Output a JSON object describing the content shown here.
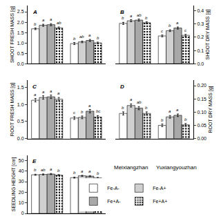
{
  "chart_data": [
    {
      "type": "bar",
      "title": "A",
      "ylabel": "SHOOT FRESH MASS [g]",
      "categories": [
        "Meixiangzhan",
        "Yuxiangyouzhan"
      ],
      "series": [
        {
          "name": "Fe-A-",
          "color": "white",
          "values": [
            1.68,
            0.97
          ],
          "errors": [
            0.04,
            0.05
          ],
          "letters": [
            "b",
            "b"
          ]
        },
        {
          "name": "Fe-A+",
          "color": "#d0d0d0",
          "values": [
            1.85,
            1.05
          ],
          "errors": [
            0.05,
            0.04
          ],
          "letters": [
            "a",
            "ab"
          ]
        },
        {
          "name": "Fe+A-",
          "color": "#a8a8a8",
          "values": [
            1.88,
            1.12
          ],
          "errors": [
            0.05,
            0.05
          ],
          "letters": [
            "a",
            "a"
          ]
        },
        {
          "name": "Fe+A+",
          "color": "#d0d0d0",
          "marker": "dots",
          "values": [
            1.73,
            1.0
          ],
          "errors": [
            0.04,
            0.04
          ],
          "letters": [
            "ab",
            "b"
          ]
        }
      ],
      "ylim": [
        0,
        2.8
      ],
      "yticks": [
        {
          "value": 0,
          "label": "0.0"
        },
        0.5,
        {
          "value": 1.0,
          "label": "1.0"
        },
        1.5,
        {
          "value": 2.0,
          "label": "2.0"
        },
        2.5
      ],
      "grid": false,
      "tick_labels": "y"
    },
    {
      "type": "bar",
      "title": "B",
      "ylabel": "SHOOT DRY MASS [g]",
      "categories": [
        "Meixiangzhan",
        "Yuxiangyouzhan"
      ],
      "series": [
        {
          "name": "Fe-A-",
          "color": "white",
          "values": [
            0.305,
            0.21
          ],
          "errors": [
            0.008,
            0.007
          ],
          "letters": [
            "b",
            "c"
          ]
        },
        {
          "name": "Fe-A+",
          "color": "#d0d0d0",
          "values": [
            0.325,
            0.25
          ],
          "errors": [
            0.008,
            0.007
          ],
          "letters": [
            "a",
            "b"
          ]
        },
        {
          "name": "Fe+A-",
          "color": "#a8a8a8",
          "values": [
            0.33,
            0.27
          ],
          "errors": [
            0.008,
            0.008
          ],
          "letters": [
            "ab",
            "a"
          ]
        },
        {
          "name": "Fe+A+",
          "color": "#d0d0d0",
          "marker": "dots",
          "values": [
            0.31,
            0.215
          ],
          "errors": [
            0.007,
            0.007
          ],
          "letters": [
            "b",
            "c"
          ]
        }
      ],
      "ylim": [
        0,
        0.44
      ],
      "yticks": [
        {
          "value": 0,
          "label": "0.0"
        },
        0.1,
        0.2,
        0.3,
        0.4
      ],
      "grid": false,
      "tick_labels": "y"
    },
    {
      "type": "bar",
      "title": "C",
      "ylabel": "ROOT FRESH MASS [g]",
      "categories": [
        "Meixiangzhan",
        "Yuxiangyouzhan"
      ],
      "series": [
        {
          "name": "Fe-A-",
          "color": "white",
          "values": [
            1.12,
            0.6
          ],
          "errors": [
            0.05,
            0.04
          ],
          "letters": [
            "a",
            "c"
          ]
        },
        {
          "name": "Fe-A+",
          "color": "#d0d0d0",
          "values": [
            1.2,
            0.62
          ],
          "errors": [
            0.05,
            0.04
          ],
          "letters": [
            "a",
            "b"
          ]
        },
        {
          "name": "Fe+A-",
          "color": "#a8a8a8",
          "values": [
            1.22,
            0.8
          ],
          "errors": [
            0.05,
            0.05
          ],
          "letters": [
            "a",
            "a"
          ]
        },
        {
          "name": "Fe+A+",
          "color": "#d0d0d0",
          "marker": "dots",
          "values": [
            1.15,
            0.63
          ],
          "errors": [
            0.05,
            0.04
          ],
          "letters": [
            "a",
            "bc"
          ]
        }
      ],
      "ylim": [
        0,
        1.7
      ],
      "yticks": [
        {
          "value": 0,
          "label": "0.0"
        },
        0.5,
        {
          "value": 1.0,
          "label": "1.0"
        },
        1.5
      ],
      "grid": false,
      "tick_labels": "y"
    },
    {
      "type": "bar",
      "title": "D",
      "ylabel": "ROOT DRY MASS [g]",
      "categories": [
        "Meixiangzhan",
        "Yuxiangyouzhan"
      ],
      "series": [
        {
          "name": "Fe-A-",
          "color": "white",
          "values": [
            0.095,
            0.05
          ],
          "errors": [
            0.006,
            0.005
          ],
          "letters": [
            "b",
            "b"
          ]
        },
        {
          "name": "Fe-A+",
          "color": "#d0d0d0",
          "values": [
            0.125,
            0.082
          ],
          "errors": [
            0.006,
            0.005
          ],
          "letters": [
            "a",
            "a"
          ]
        },
        {
          "name": "Fe+A-",
          "color": "#a8a8a8",
          "values": [
            0.115,
            0.088
          ],
          "errors": [
            0.006,
            0.005
          ],
          "letters": [
            "ab",
            "a"
          ]
        },
        {
          "name": "Fe+A+",
          "color": "#d0d0d0",
          "marker": "dots",
          "values": [
            0.095,
            0.052
          ],
          "errors": [
            0.006,
            0.005
          ],
          "letters": [
            "b",
            "b"
          ]
        }
      ],
      "ylim": [
        0,
        0.22
      ],
      "yticks": [
        {
          "value": 0,
          "label": "0.00"
        },
        0.05,
        {
          "value": 0.1,
          "label": "0.10"
        },
        0.15,
        {
          "value": 0.2,
          "label": "0.20"
        }
      ],
      "grid": false,
      "tick_labels": "y"
    },
    {
      "type": "bar",
      "title": "E",
      "ylabel": "SEEDLING HEIGHT [cm]",
      "categories": [
        "Meixiangzhan",
        "Yuxiangyouzhan"
      ],
      "series": [
        {
          "name": "Fe-A-",
          "color": "white",
          "values": [
            36.5,
            33.8
          ],
          "errors": [
            0.5,
            0.5
          ],
          "letters": [
            "b",
            "b"
          ]
        },
        {
          "name": "Fe-A+",
          "color": "#d0d0d0",
          "values": [
            36.8,
            35.5
          ],
          "errors": [
            0.5,
            0.5
          ],
          "letters": [
            "ab",
            "a"
          ]
        },
        {
          "name": "Fe+A-",
          "color": "#a8a8a8",
          "values": [
            37.2,
            35.2
          ],
          "errors": [
            0.5,
            0.5
          ],
          "letters": [
            "a",
            "a"
          ]
        },
        {
          "name": "Fe+A+",
          "color": "#d0d0d0",
          "marker": "dots",
          "values": [
            36.2,
            33.5
          ],
          "errors": [
            0.5,
            0.5
          ],
          "letters": [
            "b",
            "b"
          ]
        }
      ],
      "ylim": [
        0,
        55
      ],
      "yticks": [
        0,
        10,
        20,
        30,
        40,
        50
      ],
      "grid": false,
      "tick_labels": "y"
    }
  ]
}
